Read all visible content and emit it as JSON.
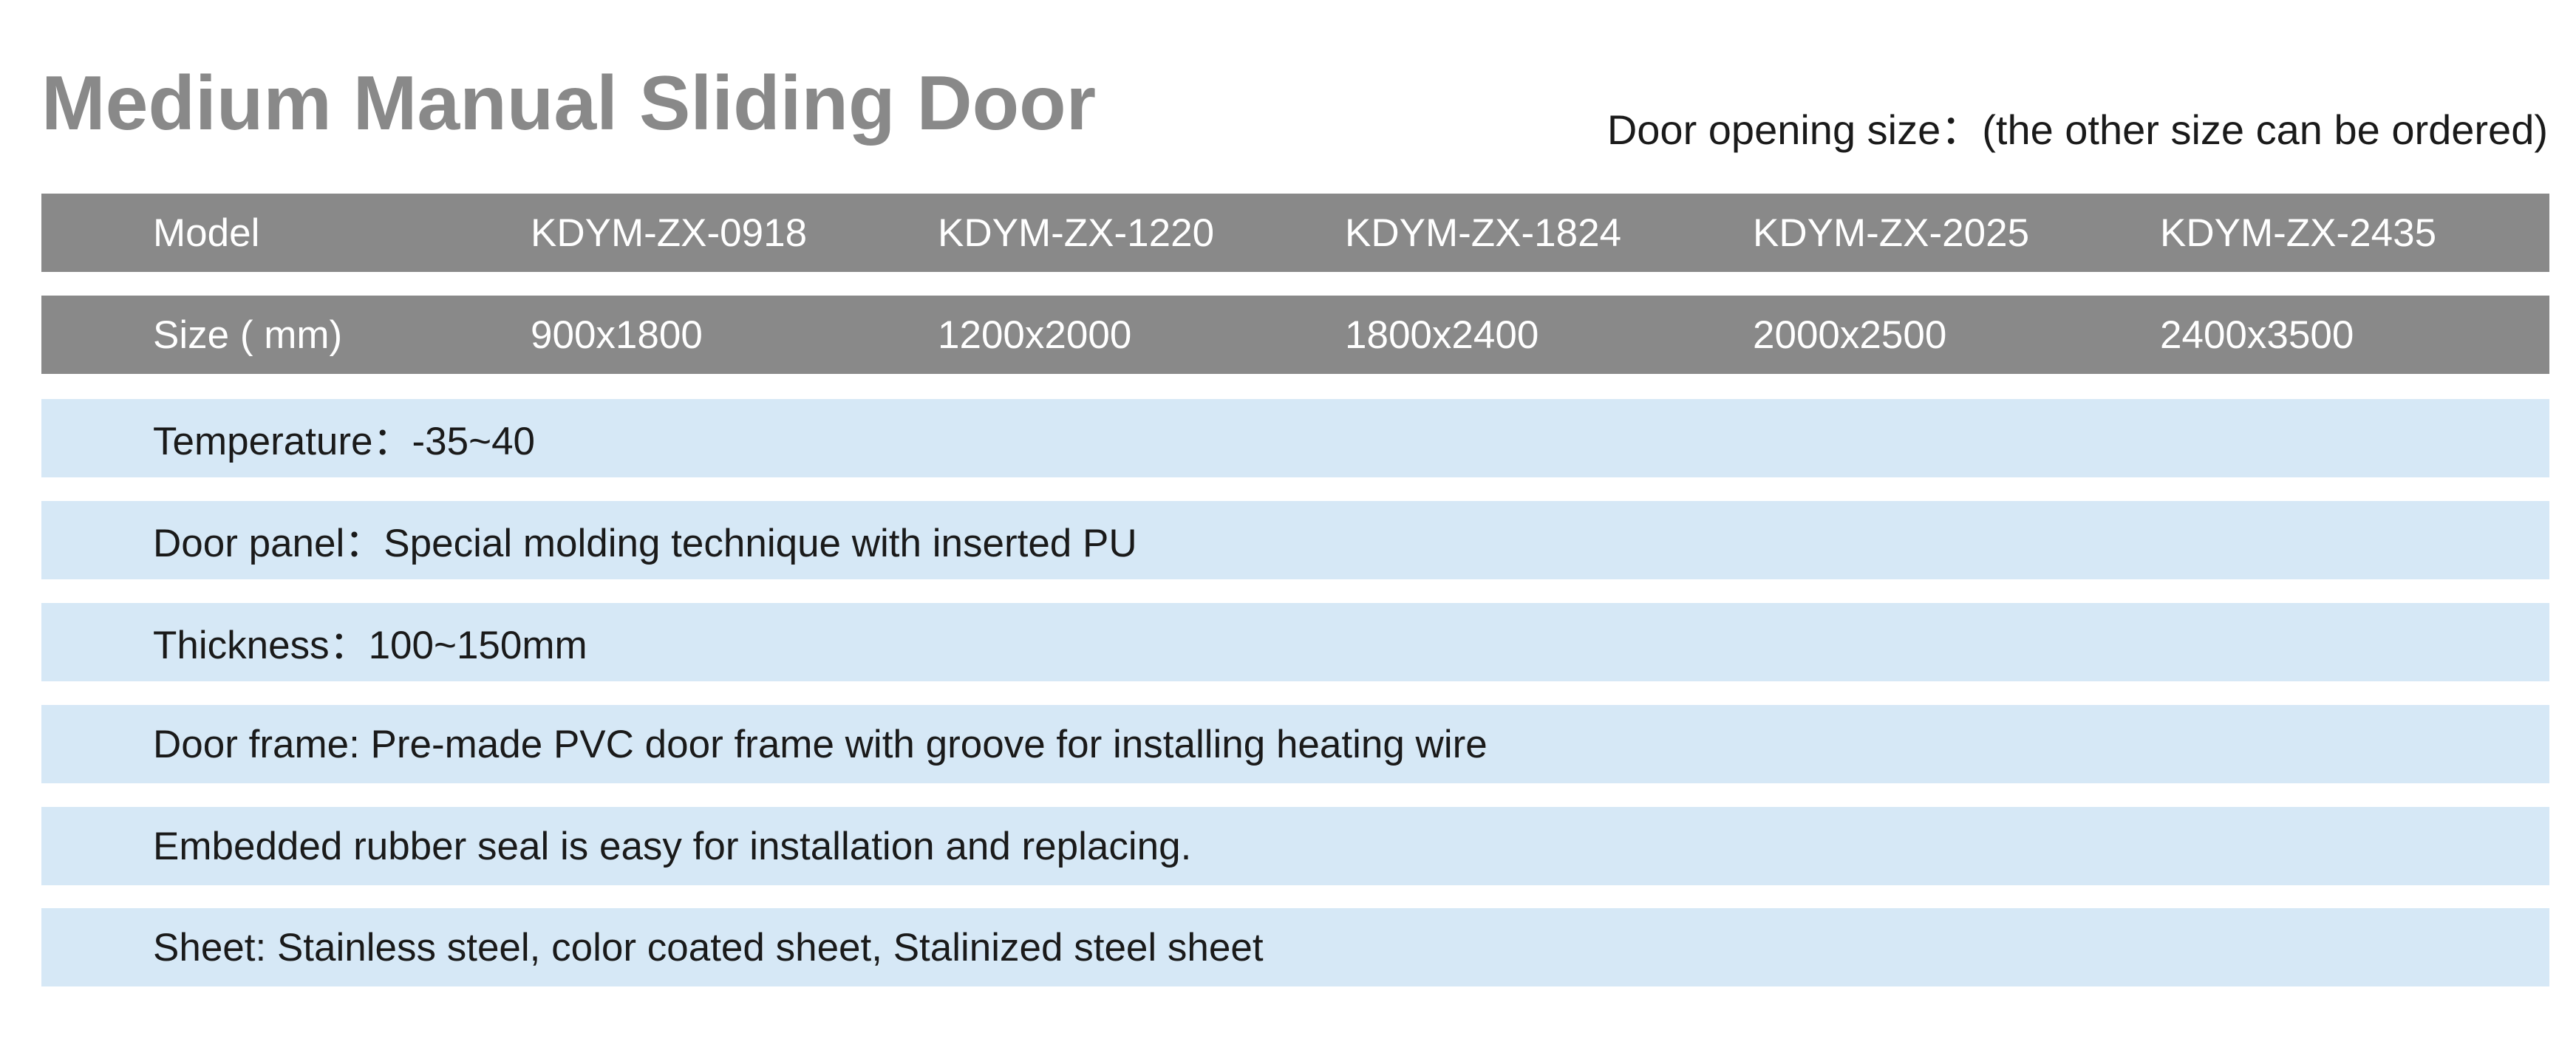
{
  "title": "Medium Manual Sliding Door",
  "subtitle": "Door opening size：(the other size can be ordered)",
  "colors": {
    "header_bg": "#898989",
    "spec_bg": "#d6e8f6",
    "title": "#898989"
  },
  "table": {
    "model_row": {
      "label": "Model",
      "values": [
        "KDYM-ZX-0918",
        "KDYM-ZX-1220",
        "KDYM-ZX-1824",
        "KDYM-ZX-2025",
        "KDYM-ZX-2435"
      ]
    },
    "size_row": {
      "label": "Size ( mm)",
      "values": [
        "900x1800",
        "1200x2000",
        "1800x2400",
        "2000x2500",
        "2400x3500"
      ]
    }
  },
  "specs": [
    "Temperature：-35~40",
    "Door panel：Special molding technique with inserted PU",
    "Thickness：100~150mm",
    "Door frame: Pre-made PVC door frame with groove for installing heating wire",
    "Embedded rubber seal is easy for installation and replacing.",
    "Sheet: Stainless steel, color coated sheet, Stalinized steel sheet"
  ]
}
